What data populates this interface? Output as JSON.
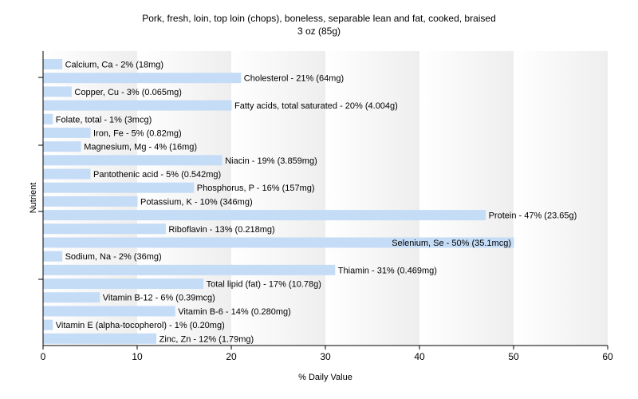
{
  "chart_data": {
    "type": "bar",
    "orientation": "horizontal",
    "title": "Pork, fresh, loin, top loin (chops), boneless, separable lean and fat, cooked, braised",
    "subtitle": "3 oz (85g)",
    "xlabel": "% Daily Value",
    "ylabel": "Nutrient",
    "xlim": [
      0,
      60
    ],
    "xticks": [
      "0",
      "10",
      "20",
      "30",
      "40",
      "50",
      "60"
    ],
    "grid": "vertical gradient bands",
    "legend": "none",
    "bar_color": "#c5dcf7",
    "categories": [
      "Calcium, Ca",
      "Cholesterol",
      "Copper, Cu",
      "Fatty acids, total saturated",
      "Folate, total",
      "Iron, Fe",
      "Magnesium, Mg",
      "Niacin",
      "Pantothenic acid",
      "Phosphorus, P",
      "Potassium, K",
      "Protein",
      "Riboflavin",
      "Selenium, Se",
      "Sodium, Na",
      "Thiamin",
      "Total lipid (fat)",
      "Vitamin B-12",
      "Vitamin B-6",
      "Vitamin E (alpha-tocopherol)",
      "Zinc, Zn"
    ],
    "values": [
      2,
      21,
      3,
      20,
      1,
      5,
      4,
      19,
      5,
      16,
      10,
      47,
      13,
      50,
      2,
      31,
      17,
      6,
      14,
      1,
      12
    ],
    "data_labels": [
      "Calcium, Ca - 2% (18mg)",
      "Cholesterol - 21% (64mg)",
      "Copper, Cu - 3% (0.065mg)",
      "Fatty acids, total saturated - 20% (4.004g)",
      "Folate, total - 1% (3mcg)",
      "Iron, Fe - 5% (0.82mg)",
      "Magnesium, Mg - 4% (16mg)",
      "Niacin - 19% (3.859mg)",
      "Pantothenic acid - 5% (0.542mg)",
      "Phosphorus, P - 16% (157mg)",
      "Potassium, K - 10% (346mg)",
      "Protein - 47% (23.65g)",
      "Riboflavin - 13% (0.218mg)",
      "Selenium, Se - 50% (35.1mcg)",
      "Sodium, Na - 2% (36mg)",
      "Thiamin - 31% (0.469mg)",
      "Total lipid (fat) - 17% (10.78g)",
      "Vitamin B-12 - 6% (0.39mcg)",
      "Vitamin B-6 - 14% (0.280mg)",
      "Vitamin E (alpha-tocopherol) - 1% (0.20mg)",
      "Zinc, Zn - 12% (1.79mg)"
    ]
  }
}
